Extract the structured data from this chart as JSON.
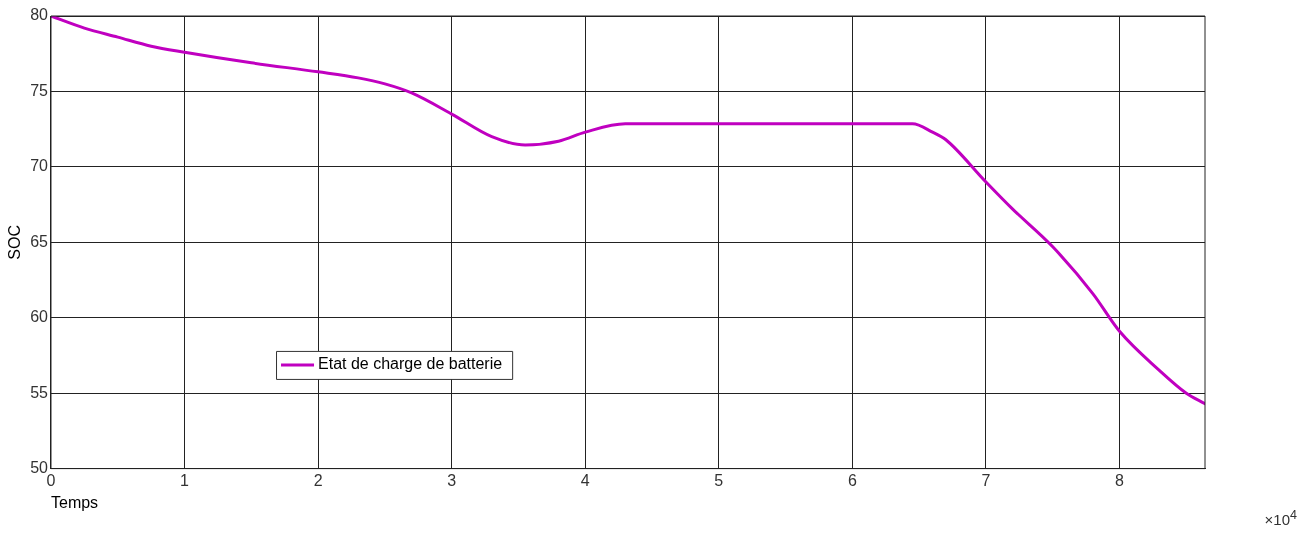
{
  "chart_data": {
    "type": "line",
    "xlabel": "Temps",
    "ylabel": "SOC",
    "x": [
      0,
      0.25,
      0.5,
      0.75,
      1,
      1.5,
      2,
      2.3,
      2.5,
      2.7,
      3,
      3.3,
      3.55,
      3.8,
      4,
      4.3,
      5,
      6,
      6.45,
      6.6,
      6.7,
      7,
      7.2,
      7.5,
      7.8,
      8,
      8.3,
      8.5,
      8.64
    ],
    "series": [
      {
        "name": "Etat de charge de batterie",
        "color": "#c000c0",
        "values": [
          80,
          79.2,
          78.6,
          78.0,
          77.6,
          76.9,
          76.3,
          75.9,
          75.5,
          74.9,
          73.5,
          72.0,
          71.45,
          71.7,
          72.3,
          72.85,
          72.85,
          72.85,
          72.85,
          72.3,
          71.8,
          69.0,
          67.2,
          64.7,
          61.6,
          59.1,
          56.5,
          55.0,
          54.3
        ]
      }
    ],
    "xlim": [
      0,
      8.64
    ],
    "xticks": [
      0,
      1,
      2,
      3,
      4,
      5,
      6,
      7,
      8
    ],
    "ylim": [
      50,
      80
    ],
    "yticks": [
      50,
      55,
      60,
      65,
      70,
      75,
      80
    ],
    "grid": true,
    "legend": "bottom left",
    "line_style": "solid",
    "marker": "none",
    "annotations": [
      "×10$^{4}$"
    ]
  }
}
